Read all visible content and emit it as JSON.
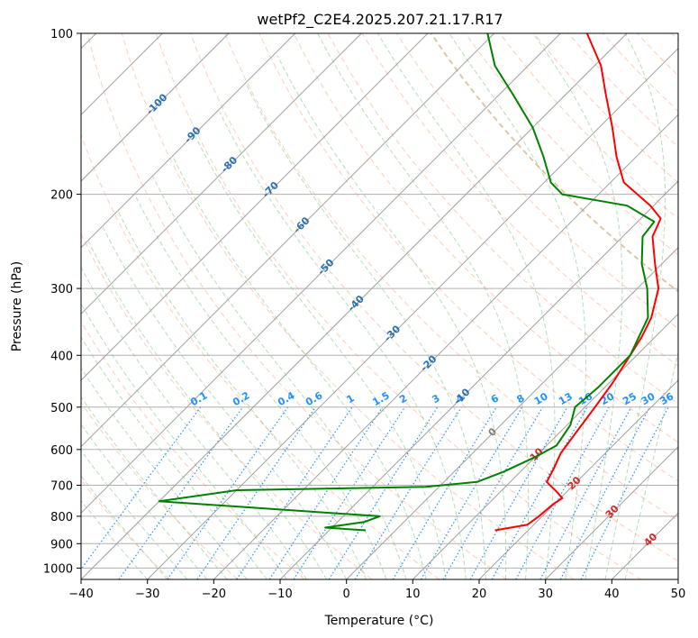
{
  "chart_data": {
    "type": "line",
    "title": "wetPf2_C2E4.2025.207.21.17.R17",
    "xlabel": "Temperature (°C)",
    "ylabel": "Pressure (hPa)",
    "xlim": [
      -40,
      50
    ],
    "ylim": [
      1050,
      100
    ],
    "y_scale": "log",
    "grid": true,
    "x_ticks": [
      -40,
      -30,
      -20,
      -10,
      0,
      10,
      20,
      30,
      40,
      50
    ],
    "y_ticks": [
      100,
      200,
      300,
      400,
      500,
      600,
      700,
      800,
      900,
      1000
    ],
    "series": [
      {
        "color": "#ff0000",
        "points": [
          [
            15,
            850
          ],
          [
            19,
            830
          ],
          [
            19.5,
            800
          ],
          [
            19.8,
            760
          ],
          [
            20.3,
            740
          ],
          [
            18.5,
            720
          ],
          [
            15.5,
            690
          ],
          [
            14.5,
            650
          ],
          [
            13.3,
            610
          ],
          [
            12.5,
            560
          ],
          [
            11.5,
            500
          ],
          [
            10.5,
            450
          ],
          [
            9.0,
            400
          ],
          [
            8.0,
            370
          ],
          [
            6.5,
            340
          ],
          [
            3.2,
            300
          ],
          [
            -1.0,
            270
          ],
          [
            -5.5,
            240
          ],
          [
            -7.0,
            222
          ],
          [
            -10.5,
            210
          ],
          [
            -18,
            190
          ],
          [
            -23,
            170
          ],
          [
            -28,
            150
          ],
          [
            -34,
            130
          ],
          [
            -39,
            115
          ],
          [
            -46,
            100
          ]
        ]
      },
      {
        "color": "#008000",
        "points": [
          [
            -4.5,
            850
          ],
          [
            -11,
            840
          ],
          [
            -6,
            820
          ],
          [
            -4.5,
            800
          ],
          [
            -40,
            750
          ],
          [
            -30,
            715
          ],
          [
            -2,
            705
          ],
          [
            5,
            690
          ],
          [
            7.5,
            660
          ],
          [
            10,
            620
          ],
          [
            11.5,
            590
          ],
          [
            10.5,
            540
          ],
          [
            8.5,
            500
          ],
          [
            9.0,
            460
          ],
          [
            9.0,
            400
          ],
          [
            6.0,
            340
          ],
          [
            1.5,
            300
          ],
          [
            -3,
            270
          ],
          [
            -7,
            240
          ],
          [
            -7.5,
            225
          ],
          [
            -14,
            210
          ],
          [
            -25.5,
            200
          ],
          [
            -29,
            190
          ],
          [
            -34,
            170
          ],
          [
            -40,
            150
          ],
          [
            -48,
            130
          ],
          [
            -55,
            115
          ],
          [
            -61,
            100
          ]
        ]
      }
    ],
    "isotherm_labels": [
      "-100",
      "-90",
      "-80",
      "-70",
      "-60",
      "-50",
      "-40",
      "-30",
      "-20",
      "-10",
      "0"
    ],
    "dry_adiabat_labels": [
      "10",
      "20",
      "30",
      "40"
    ],
    "mixing_ratio_labels": [
      "0.1",
      "0.2",
      "0.4",
      "0.6",
      "1",
      "1.5",
      "2",
      "3",
      "4",
      "6",
      "8",
      "10",
      "13",
      "16",
      "20",
      "25",
      "30",
      "36"
    ]
  }
}
